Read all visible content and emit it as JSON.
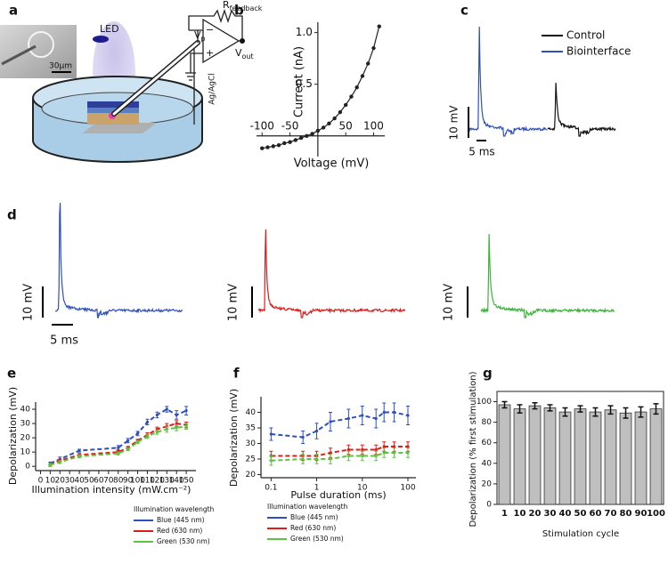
{
  "diagram": {
    "panel": "a",
    "inset_scale": "30μm",
    "led": "LED",
    "vp": {
      "base": "V",
      "sub": "p"
    },
    "rfeedback": {
      "base": "R",
      "sub": "feedback"
    },
    "vout": {
      "base": "V",
      "sub": "out"
    },
    "electrode": "Ag/AgCl"
  },
  "traces": {
    "c": {
      "panel": "c",
      "legend": [
        {
          "name": "Control",
          "color": "#111111"
        },
        {
          "name": "Biointerface",
          "color": "#2e4fc0"
        }
      ],
      "scale_y": "10 mV",
      "scale_x": "5 ms"
    },
    "d": {
      "panel": "d",
      "colors": [
        "#2e4fc0",
        "#e01b1b",
        "#3cb43c"
      ],
      "scale_y": [
        "10 mV",
        "10 mV",
        "10 mV"
      ],
      "scale_x": "5 ms"
    }
  },
  "chart_data": [
    {
      "panel": "b",
      "type": "line",
      "x_label": "Voltage (mV)",
      "y_label": "Current (nA)",
      "axes_through_origin": true,
      "marker": "circle",
      "x": [
        -100,
        -90,
        -80,
        -70,
        -60,
        -50,
        -40,
        -30,
        -20,
        -10,
        0,
        10,
        20,
        30,
        40,
        50,
        60,
        70,
        80,
        90,
        100,
        110
      ],
      "series": [
        {
          "color": "#222222",
          "values": [
            -0.12,
            -0.11,
            -0.1,
            -0.09,
            -0.07,
            -0.06,
            -0.04,
            -0.02,
            0,
            0.02,
            0.05,
            0.08,
            0.12,
            0.17,
            0.23,
            0.3,
            0.38,
            0.47,
            0.58,
            0.7,
            0.85,
            1.06
          ]
        }
      ],
      "xlim": [
        -110,
        120
      ],
      "ylim": [
        -0.2,
        1.1
      ],
      "xticks": [
        -100,
        -50,
        50,
        100
      ],
      "yticks": [
        0.5,
        {
          "value": 1,
          "label": "1.0"
        }
      ]
    },
    {
      "panel": "e",
      "type": "line",
      "x_label": "Illumination intensity (mW.cm⁻²)",
      "y_label": "Depolarization (mV)",
      "legend_title": "Illumination wavelength",
      "legend_position": "lower right",
      "line_style": "dashed",
      "marker": "circle",
      "x": [
        10,
        20,
        40,
        80,
        90,
        100,
        110,
        120,
        130,
        140,
        150
      ],
      "series": [
        {
          "name": "Blue (445 nm)",
          "color": "#2e4fc0",
          "values": [
            2,
            5,
            11,
            13,
            18,
            23,
            31,
            36,
            40,
            36,
            39
          ],
          "errors": [
            1,
            1.5,
            1,
            1.5,
            1.5,
            1.5,
            2,
            2,
            2,
            3,
            3
          ]
        },
        {
          "name": "Red (630 nm)",
          "color": "#e01b1b",
          "values": [
            1,
            4,
            8,
            10,
            13,
            18,
            22,
            26,
            28,
            30,
            29
          ],
          "errors": [
            1,
            1,
            1,
            1,
            1,
            1,
            1.5,
            1.5,
            2,
            2,
            2
          ]
        },
        {
          "name": "Green (530 nm)",
          "color": "#5cc43c",
          "values": [
            1,
            3,
            7,
            9,
            12,
            17,
            21,
            24,
            26,
            27,
            28
          ],
          "errors": [
            1,
            1,
            1,
            1,
            1,
            1,
            1.5,
            1.5,
            2,
            2,
            2
          ]
        }
      ],
      "xlim": [
        -5,
        160
      ],
      "ylim": [
        -3,
        45
      ],
      "xticks": [
        0,
        10,
        20,
        30,
        40,
        50,
        60,
        70,
        80,
        90,
        100,
        110,
        120,
        130,
        140,
        150
      ],
      "yticks": [
        0,
        10,
        20,
        30,
        40
      ]
    },
    {
      "panel": "f",
      "type": "line",
      "x_label": "Pulse duration (ms)",
      "y_label": "Depolarization (mV)",
      "legend_title": "Illumination wavelength",
      "legend_position": "lower right",
      "line_style": "dashed",
      "marker": "circle",
      "log_x": true,
      "x": [
        0.1,
        0.5,
        1,
        2,
        5,
        10,
        20,
        30,
        50,
        100
      ],
      "series": [
        {
          "name": "Blue (445 nm)",
          "color": "#2e4fc0",
          "values": [
            33,
            32,
            34,
            37,
            38,
            39,
            38,
            40,
            40,
            39
          ],
          "errors": [
            2,
            2,
            2.5,
            3,
            3,
            3,
            3,
            3,
            3,
            3
          ]
        },
        {
          "name": "Red (630 nm)",
          "color": "#e01b1b",
          "values": [
            26,
            26,
            26,
            27,
            28,
            28,
            28,
            29,
            29,
            29
          ],
          "errors": [
            1.5,
            1.5,
            1.5,
            1.5,
            1.5,
            1.5,
            1.5,
            1.5,
            1.5,
            1.5
          ]
        },
        {
          "name": "Green (530 nm)",
          "color": "#5cc43c",
          "values": [
            24.5,
            25,
            25,
            25,
            26,
            26,
            26,
            27,
            27,
            27
          ],
          "errors": [
            1.5,
            1.5,
            1.5,
            1.5,
            1.5,
            1.5,
            1.5,
            1.5,
            1.5,
            1.5
          ]
        }
      ],
      "xlim": [
        0.06,
        150
      ],
      "ylim": [
        19,
        45
      ],
      "xticks": [
        0.1,
        1,
        10,
        100
      ],
      "yticks": [
        20,
        25,
        30,
        35,
        40
      ]
    },
    {
      "panel": "g",
      "type": "bar",
      "x_label": "Stimulation cycle",
      "y_label": "Depolarization (% first stimulation)",
      "frame": true,
      "color": "#bfbfbf",
      "categories": [
        "1",
        "10",
        "20",
        "30",
        "40",
        "50",
        "60",
        "70",
        "80",
        "90",
        "100"
      ],
      "values": [
        97,
        93,
        96,
        94,
        90,
        93,
        90,
        92,
        89,
        90,
        93
      ],
      "errors": [
        3,
        4,
        3,
        3,
        4,
        3,
        4,
        4,
        5,
        5,
        5
      ],
      "ylim": [
        0,
        110
      ],
      "yticks": [
        0,
        20,
        40,
        60,
        80,
        100
      ]
    }
  ]
}
